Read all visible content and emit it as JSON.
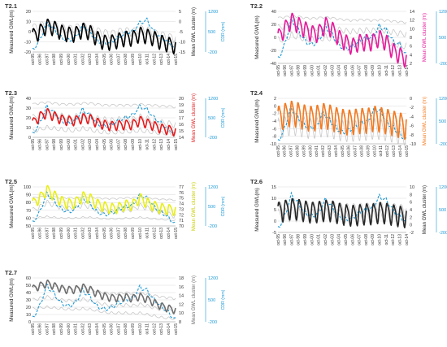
{
  "figure": {
    "background": "#ffffff",
    "cdr_color": "#1f9ad6",
    "grid_color": "#d9d9d9",
    "cluster_member_color": "#c8c8c8"
  },
  "chart_data": [
    {
      "id": "T2.1",
      "title": "T2.1",
      "type": "line",
      "ylabel_left": "Measured GWL(m)",
      "ylabel_right": "Mean GWL cluster (m)",
      "ylabel_cdr": "CDR (mm)",
      "mean_color": "#000000",
      "ylim_left": [
        -20,
        20
      ],
      "yticks_left": [
        -20,
        -10,
        0,
        10,
        20
      ],
      "ylim_right": [
        -15,
        5
      ],
      "yticks_right": [
        -15,
        -10,
        -5,
        0,
        5
      ],
      "ylim_cdr": [
        -200,
        1200
      ],
      "yticks_cdr": [
        -200,
        500,
        1200
      ],
      "x_ticks": [
        "oct-95",
        "oct-96",
        "oct-97",
        "oct-98",
        "oct-99",
        "oct-00",
        "oct-01",
        "oct-02",
        "oct-03",
        "oct-04",
        "oct-05",
        "oct-06",
        "oct-07",
        "oct-08",
        "oct-09",
        "oct-10",
        "oct-11",
        "oct-12",
        "oct-13",
        "oct-14",
        "oct-15"
      ],
      "members_annual": [
        [
          4,
          6,
          9,
          7,
          5,
          3,
          4,
          6,
          4,
          1,
          -1,
          -2,
          0,
          1,
          0,
          3,
          2,
          -1,
          -3,
          -5,
          -6
        ],
        [
          -4,
          -2,
          2,
          1,
          -1,
          -3,
          -2,
          0,
          -2,
          -5,
          -7,
          -8,
          -6,
          -5,
          -6,
          -3,
          -4,
          -6,
          -8,
          -10,
          -11
        ]
      ],
      "members_amp": [
        4,
        4
      ],
      "mean_annual": [
        -7,
        -5,
        -2,
        -3,
        -5,
        -6,
        -6,
        -4,
        -5,
        -8,
        -10,
        -10,
        -9,
        -8,
        -8,
        -6,
        -7,
        -8,
        -10,
        -11,
        -12
      ],
      "mean_amp": 3.5,
      "cdr_annual": [
        -150,
        200,
        800,
        600,
        300,
        200,
        300,
        700,
        500,
        200,
        100,
        150,
        300,
        450,
        500,
        800,
        900,
        500,
        300,
        150,
        -100
      ]
    },
    {
      "id": "T2.2",
      "title": "T2.2",
      "type": "line",
      "ylabel_left": "Measured GWL(m)",
      "ylabel_right": "Mean GWL cluster (m)",
      "ylabel_cdr": "CDR (mm)",
      "mean_color": "#e6199b",
      "ylim_left": [
        -40,
        40
      ],
      "yticks_left": [
        -40,
        -20,
        0,
        20,
        40
      ],
      "ylim_right": [
        2,
        14
      ],
      "yticks_right": [
        2,
        4,
        6,
        8,
        10,
        12,
        14
      ],
      "ylim_cdr": [
        -200,
        1200
      ],
      "yticks_cdr": [
        -200,
        500,
        1200
      ],
      "x_ticks": [
        "oct-95",
        "oct-96",
        "oct-97",
        "oct-98",
        "oct-99",
        "oct-00",
        "oct-01",
        "oct-02",
        "oct-03",
        "oct-04",
        "oct-05",
        "oct-06",
        "oct-07",
        "oct-08",
        "oct-09",
        "oct-10",
        "oct-11",
        "oct-12",
        "oct-13",
        "oct-14"
      ],
      "members_annual": [
        [
          30,
          31,
          33,
          32,
          30,
          29,
          30,
          31,
          30,
          28,
          27,
          26,
          27,
          27,
          26,
          27,
          26,
          25,
          24,
          23
        ],
        [
          15,
          17,
          20,
          18,
          16,
          14,
          15,
          17,
          15,
          12,
          10,
          9,
          10,
          11,
          10,
          12,
          10,
          8,
          6,
          5
        ],
        [
          -5,
          -2,
          3,
          1,
          -2,
          -4,
          -3,
          0,
          -2,
          -6,
          -8,
          -10,
          -8,
          -7,
          -8,
          -5,
          -7,
          -10,
          -12,
          -14
        ]
      ],
      "members_amp": [
        1.5,
        4,
        5
      ],
      "mean_annual": [
        8,
        10,
        12,
        11,
        10,
        9,
        9,
        11,
        10,
        8,
        7,
        6,
        7,
        7,
        7,
        8,
        7,
        5,
        4,
        3
      ],
      "mean_amp": 1.8,
      "cdr_annual": [
        -100,
        300,
        1000,
        700,
        400,
        300,
        400,
        800,
        600,
        300,
        200,
        250,
        400,
        500,
        500,
        800,
        700,
        400,
        300,
        0
      ]
    },
    {
      "id": "T2.3",
      "title": "T2.3",
      "type": "line",
      "ylabel_left": "Measured GWL(m)",
      "ylabel_right": "Mean GWL cluster (m)",
      "ylabel_cdr": "CDR (mm)",
      "mean_color": "#e31a1c",
      "ylim_left": [
        0,
        40
      ],
      "yticks_left": [
        0,
        10,
        20,
        30,
        40
      ],
      "ylim_right": [
        14,
        20
      ],
      "yticks_right": [
        14,
        15,
        16,
        17,
        18,
        19,
        20
      ],
      "ylim_cdr": [
        -200,
        1200
      ],
      "yticks_cdr": [
        -200,
        500,
        1200
      ],
      "x_ticks": [
        "oct-95",
        "oct-96",
        "oct-97",
        "oct-98",
        "oct-99",
        "oct-00",
        "oct-01",
        "oct-02",
        "oct-03",
        "oct-04",
        "oct-05",
        "oct-06",
        "oct-07",
        "oct-08",
        "oct-09",
        "oct-10",
        "oct-11",
        "oct-12",
        "oct-13",
        "oct-14",
        "oct-15"
      ],
      "members_annual": [
        [
          34,
          35,
          36,
          35,
          34,
          34,
          34,
          35,
          35,
          34,
          33,
          33,
          33,
          33,
          33,
          34,
          33,
          33,
          32,
          32,
          31
        ],
        [
          20,
          23,
          26,
          24,
          22,
          20,
          21,
          23,
          22,
          19,
          18,
          17,
          18,
          19,
          18,
          21,
          19,
          17,
          15,
          14,
          13
        ],
        [
          6,
          8,
          10,
          9,
          8,
          7,
          7,
          9,
          8,
          6,
          5,
          5,
          5,
          6,
          6,
          7,
          6,
          5,
          4,
          4,
          3
        ]
      ],
      "members_amp": [
        1,
        3,
        2
      ],
      "mean_annual": [
        16.2,
        17.2,
        17.8,
        17.3,
        16.8,
        16.6,
        16.6,
        17.0,
        16.9,
        16.3,
        16.0,
        15.8,
        15.9,
        16.0,
        16.0,
        16.6,
        16.2,
        15.8,
        15.4,
        15.2,
        15.0
      ],
      "mean_amp": 0.7,
      "cdr_annual": [
        -100,
        300,
        900,
        700,
        400,
        300,
        400,
        800,
        600,
        300,
        200,
        250,
        400,
        500,
        600,
        900,
        800,
        500,
        300,
        100,
        -100
      ]
    },
    {
      "id": "T2.4",
      "title": "T2.4",
      "type": "line",
      "ylabel_left": "Measured GWL(m)",
      "ylabel_right": "Mean GWL cluster (m)",
      "ylabel_cdr": "CDR (mm)",
      "mean_color": "#f47a20",
      "ylim_left": [
        -10,
        2
      ],
      "yticks_left": [
        -10,
        -8,
        -6,
        -4,
        -2,
        0,
        2
      ],
      "ylim_right": [
        -10,
        0
      ],
      "yticks_right": [
        -10,
        -8,
        -6,
        -4,
        -2,
        0
      ],
      "ylim_cdr": [
        -200,
        1200
      ],
      "yticks_cdr": [
        -200,
        500,
        1200
      ],
      "x_ticks": [
        "oct-95",
        "oct-96",
        "oct-97",
        "oct-98",
        "oct-99",
        "oct-00",
        "oct-01",
        "oct-02",
        "oct-03",
        "oct-04",
        "oct-05",
        "oct-06",
        "oct-07",
        "oct-08",
        "oct-09",
        "oct-10",
        "oct-11",
        "oct-12",
        "oct-13",
        "oct-14",
        "oct-15"
      ],
      "members_annual": [
        [
          -3,
          -2.5,
          -2,
          -2.2,
          -2.6,
          -3,
          -2.8,
          -2.4,
          -2.6,
          -3.2,
          -3.6,
          -3.8,
          -3.6,
          -3.4,
          -3.4,
          -3,
          -3.2,
          -3.6,
          -4,
          -4.4,
          -4.8
        ],
        [
          -6,
          -5.5,
          -5,
          -5.2,
          -5.6,
          -6,
          -5.8,
          -5.4,
          -5.6,
          -6.2,
          -6.6,
          -6.8,
          -6.6,
          -6.4,
          -6.4,
          -6,
          -6.2,
          -6.6,
          -7,
          -7.4,
          -7.8
        ]
      ],
      "members_amp": [
        2.5,
        2.5
      ],
      "mean_annual": [
        -4.2,
        -3.6,
        -3,
        -3.3,
        -3.8,
        -4.2,
        -4,
        -3.5,
        -3.8,
        -4.4,
        -4.8,
        -5,
        -4.8,
        -4.6,
        -4.6,
        -4.1,
        -4.4,
        -4.8,
        -5.2,
        -5.6,
        -6
      ],
      "mean_amp": 2.6,
      "cdr_annual": [
        -150,
        250,
        900,
        650,
        400,
        300,
        350,
        750,
        550,
        300,
        150,
        200,
        350,
        450,
        500,
        850,
        800,
        450,
        300,
        100,
        -100
      ]
    },
    {
      "id": "T2.5",
      "title": "T2.5",
      "type": "line",
      "ylabel_left": "Measured GWL(m)",
      "ylabel_right": "Mean GWL cluster (m)",
      "ylabel_cdr": "CDR (mm)",
      "mean_color": "#e8ee1a",
      "ylim_left": [
        50,
        100
      ],
      "yticks_left": [
        50,
        60,
        70,
        80,
        90,
        100
      ],
      "ylim_right": [
        70,
        77
      ],
      "yticks_right": [
        70,
        71,
        72,
        73,
        74,
        75,
        76,
        77
      ],
      "ylim_cdr": [
        -200,
        1200
      ],
      "yticks_cdr": [
        -200,
        500,
        1200
      ],
      "x_ticks": [
        "oct-95",
        "oct-96",
        "oct-97",
        "oct-98",
        "oct-99",
        "oct-00",
        "oct-01",
        "oct-02",
        "oct-03",
        "oct-04",
        "oct-05",
        "oct-06",
        "oct-07",
        "oct-08",
        "oct-09",
        "oct-10",
        "oct-11",
        "oct-12",
        "oct-13",
        "oct-14",
        "oct-15"
      ],
      "members_annual": [
        [
          86,
          87,
          88,
          87,
          86,
          86,
          86,
          87,
          87,
          86,
          85,
          85,
          85,
          86,
          86,
          87,
          86,
          85,
          84,
          84,
          83
        ],
        [
          70,
          74,
          80,
          77,
          74,
          72,
          73,
          77,
          75,
          71,
          69,
          68,
          69,
          71,
          71,
          76,
          73,
          70,
          67,
          65,
          63
        ],
        [
          60,
          61,
          62,
          61,
          60,
          60,
          60,
          61,
          61,
          60,
          59,
          59,
          59,
          60,
          60,
          61,
          60,
          59,
          58,
          58,
          57
        ]
      ],
      "members_amp": [
        0.8,
        3,
        0.8
      ],
      "mean_annual": [
        74,
        75,
        76.5,
        75.5,
        74.5,
        74,
        74.2,
        75.3,
        75,
        74,
        73.5,
        73.2,
        73.3,
        73.8,
        73.8,
        75,
        74.2,
        73.6,
        73.2,
        73,
        72.9
      ],
      "mean_amp": 0.9,
      "cdr_annual": [
        -100,
        300,
        950,
        700,
        400,
        300,
        400,
        800,
        600,
        300,
        200,
        250,
        400,
        500,
        550,
        900,
        800,
        500,
        300,
        100,
        -150
      ]
    },
    {
      "id": "T2.6",
      "title": "T2.6",
      "type": "line",
      "ylabel_left": "Measured GWL(m)",
      "ylabel_right": "Mean GWL cluster (m)",
      "ylabel_cdr": "CDR (mm)",
      "mean_color": "#262626",
      "ylim_left": [
        -5,
        15
      ],
      "yticks_left": [
        -5,
        0,
        5,
        10,
        15
      ],
      "ylim_right": [
        -2,
        10
      ],
      "yticks_right": [
        -2,
        0,
        2,
        4,
        6,
        8,
        10
      ],
      "ylim_cdr": [
        -200,
        1200
      ],
      "yticks_cdr": [
        -200,
        500,
        1200
      ],
      "x_ticks": [
        "oct-95",
        "oct-96",
        "oct-97",
        "oct-98",
        "oct-99",
        "oct-00",
        "oct-01",
        "oct-02",
        "oct-03",
        "oct-04",
        "oct-05",
        "oct-06",
        "oct-07",
        "oct-08",
        "oct-09",
        "oct-10",
        "oct-11",
        "oct-12",
        "oct-13",
        "oct-14"
      ],
      "members_annual": [
        [
          6,
          6.5,
          7,
          6.8,
          6.4,
          6,
          6.2,
          6.6,
          6.4,
          5.8,
          5.4,
          5.2,
          5.4,
          5.6,
          5.6,
          6,
          5.8,
          5.4,
          5,
          4.8
        ],
        [
          2,
          2.5,
          3,
          2.8,
          2.4,
          2,
          2.2,
          2.6,
          2.4,
          1.8,
          1.4,
          1.2,
          1.4,
          1.6,
          1.6,
          2,
          1.8,
          1.4,
          1,
          0.8
        ]
      ],
      "members_amp": [
        3,
        3
      ],
      "mean_annual": [
        3.5,
        4,
        4.5,
        4.3,
        3.9,
        3.5,
        3.7,
        4.1,
        3.9,
        3.3,
        2.9,
        2.7,
        2.9,
        3.1,
        3.1,
        3.5,
        3.3,
        2.9,
        2.5,
        2.3
      ],
      "mean_amp": 2.6,
      "cdr_annual": [
        -100,
        300,
        950,
        700,
        400,
        300,
        400,
        800,
        600,
        300,
        200,
        250,
        400,
        500,
        550,
        900,
        800,
        500,
        300,
        100
      ]
    },
    {
      "id": "T2.7",
      "title": "T2.7",
      "type": "line",
      "ylabel_left": "Measured GWL(m)",
      "ylabel_right": "Mean GWL cluster (m)",
      "ylabel_cdr": "CDR (mm)",
      "mean_color": "#6e6e6e",
      "ylim_left": [
        0,
        60
      ],
      "yticks_left": [
        0,
        10,
        20,
        30,
        40,
        50,
        60
      ],
      "ylim_right": [
        8,
        18
      ],
      "yticks_right": [
        8,
        10,
        12,
        14,
        16,
        18
      ],
      "ylim_cdr": [
        -200,
        1200
      ],
      "yticks_cdr": [
        -200,
        500,
        1200
      ],
      "x_ticks": [
        "oct-95",
        "oct-96",
        "oct-97",
        "oct-98",
        "oct-99",
        "oct-00",
        "oct-01",
        "oct-02",
        "oct-03",
        "oct-04",
        "oct-05",
        "oct-06",
        "oct-07",
        "oct-08",
        "oct-09",
        "oct-10",
        "oct-11",
        "oct-12",
        "oct-13",
        "oct-14",
        "oct-15"
      ],
      "members_annual": [
        [
          46,
          48,
          50,
          48,
          46,
          45,
          45,
          47,
          45,
          42,
          40,
          39,
          39,
          40,
          39,
          40,
          38,
          36,
          34,
          33,
          32
        ],
        [
          30,
          32,
          34,
          32,
          30,
          29,
          29,
          31,
          29,
          26,
          24,
          22,
          22,
          23,
          22,
          24,
          22,
          19,
          17,
          16,
          15
        ],
        [
          18,
          19,
          20,
          19,
          18,
          17,
          17,
          18,
          17,
          15,
          13,
          12,
          12,
          12,
          11,
          12,
          10,
          8,
          6,
          5,
          4
        ]
      ],
      "members_amp": [
        1.5,
        2,
        1.5
      ],
      "mean_annual": [
        15.5,
        16.2,
        16.8,
        16.2,
        15.6,
        15.3,
        15.4,
        15.9,
        15.4,
        14.5,
        13.9,
        13.5,
        13.5,
        13.7,
        13.4,
        13.8,
        13.2,
        12.4,
        11.6,
        11.1,
        10.7
      ],
      "mean_amp": 0.8,
      "cdr_annual": [
        -100,
        300,
        950,
        700,
        400,
        300,
        400,
        800,
        600,
        300,
        200,
        250,
        400,
        500,
        550,
        900,
        800,
        500,
        300,
        100,
        -150
      ]
    }
  ]
}
